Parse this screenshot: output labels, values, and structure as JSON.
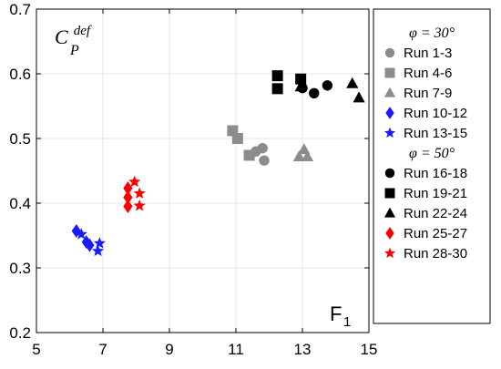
{
  "chart_data": {
    "type": "scatter",
    "xlabel_main": "F",
    "xlabel_sub": "1",
    "ylabel_main": "C",
    "ylabel_sub": "P",
    "ylabel_sup": "def",
    "xlim": [
      5,
      15
    ],
    "ylim": [
      0.2,
      0.7
    ],
    "xticks": [
      "5",
      "7",
      "9",
      "11",
      "13",
      "15"
    ],
    "yticks": [
      "0.2",
      "0.3",
      "0.4",
      "0.5",
      "0.6",
      "0.7"
    ],
    "grid": true,
    "legend_position": "right",
    "groups": [
      {
        "header": "φ = 30°",
        "series": [
          {
            "name": "Run 1-3",
            "marker": "circle",
            "color": "#8c8c8c",
            "points": [
              [
                11.6,
                0.48
              ],
              [
                11.8,
                0.485
              ],
              [
                11.85,
                0.466
              ]
            ]
          },
          {
            "name": "Run 4-6",
            "marker": "square",
            "color": "#8c8c8c",
            "points": [
              [
                10.9,
                0.512
              ],
              [
                11.05,
                0.5
              ],
              [
                11.4,
                0.474
              ]
            ]
          },
          {
            "name": "Run 7-9",
            "marker": "triangle",
            "color": "#8c8c8c",
            "points": [
              [
                12.9,
                0.472
              ],
              [
                13.05,
                0.483
              ],
              [
                13.15,
                0.472
              ]
            ]
          },
          {
            "name": "Run 10-12",
            "marker": "diamond",
            "color": "#1a1aff",
            "points": [
              [
                6.2,
                0.357
              ],
              [
                6.5,
                0.34
              ],
              [
                6.6,
                0.335
              ]
            ]
          },
          {
            "name": "Run 13-15",
            "marker": "star",
            "color": "#1a1aff",
            "points": [
              [
                6.35,
                0.352
              ],
              [
                6.9,
                0.338
              ],
              [
                6.85,
                0.326
              ]
            ]
          }
        ]
      },
      {
        "header": "φ = 50°",
        "series": [
          {
            "name": "Run 16-18",
            "marker": "circle",
            "color": "#000000",
            "points": [
              [
                13.0,
                0.578
              ],
              [
                13.35,
                0.57
              ],
              [
                13.75,
                0.582
              ]
            ]
          },
          {
            "name": "Run 19-21",
            "marker": "square",
            "color": "#000000",
            "points": [
              [
                12.25,
                0.597
              ],
              [
                12.25,
                0.577
              ],
              [
                12.95,
                0.592
              ]
            ]
          },
          {
            "name": "Run 22-24",
            "marker": "triangle",
            "color": "#000000",
            "points": [
              [
                12.95,
                0.58
              ],
              [
                14.5,
                0.585
              ],
              [
                14.7,
                0.563
              ]
            ]
          },
          {
            "name": "Run 25-27",
            "marker": "diamond",
            "color": "#ff0000",
            "points": [
              [
                7.75,
                0.423
              ],
              [
                7.75,
                0.409
              ],
              [
                7.75,
                0.395
              ]
            ]
          },
          {
            "name": "Run 28-30",
            "marker": "star",
            "color": "#ff0000",
            "points": [
              [
                7.95,
                0.433
              ],
              [
                8.1,
                0.415
              ],
              [
                8.1,
                0.396
              ]
            ]
          }
        ]
      }
    ]
  }
}
